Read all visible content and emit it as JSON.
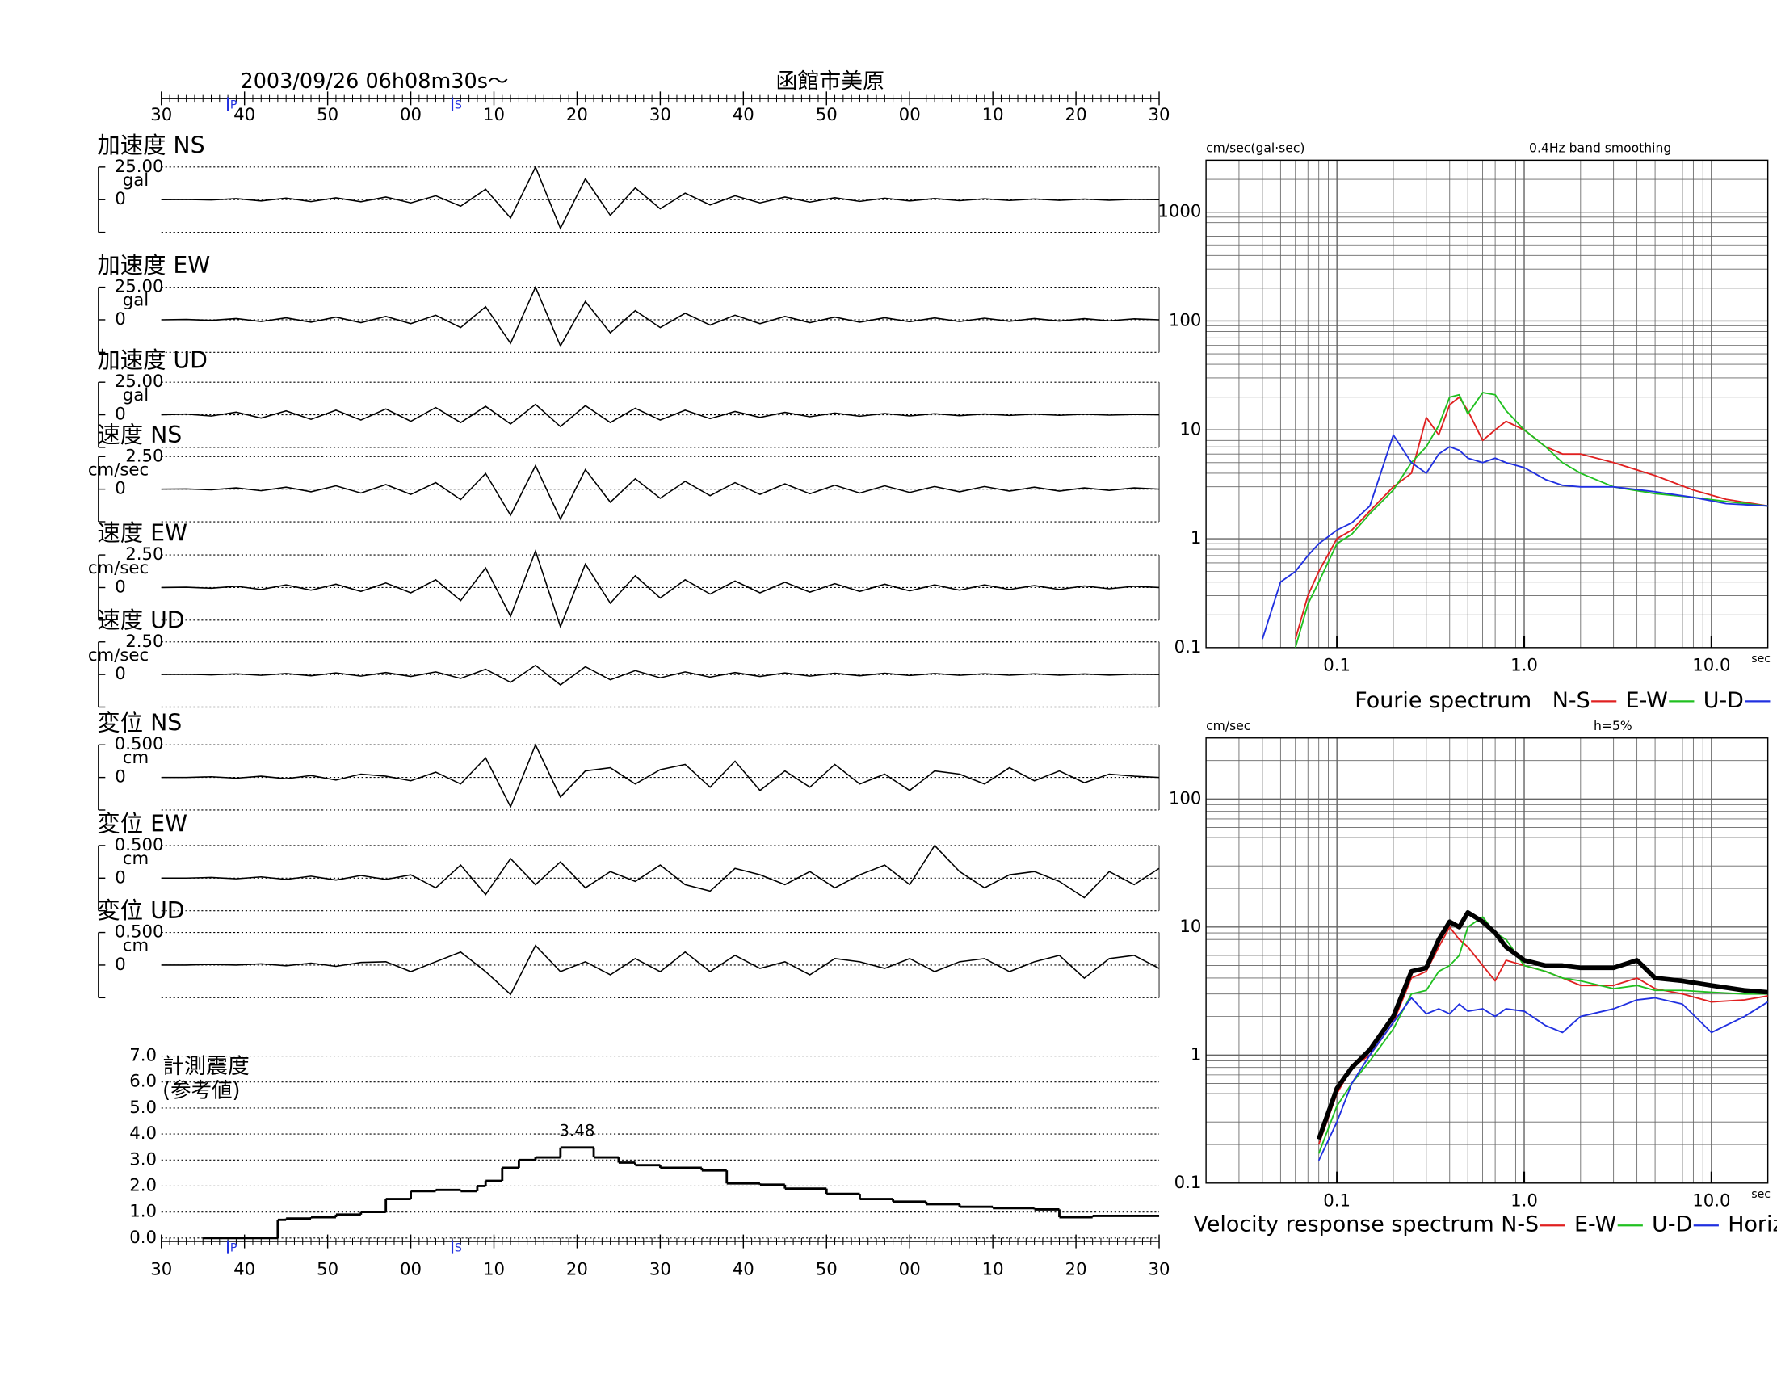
{
  "chart_data": [
    {
      "type": "waveform",
      "title": "2003/09/26  06h08m30s〜",
      "subtitle": "函館市美原",
      "xlim": [
        0,
        120
      ],
      "xticks": [
        {
          "value": 0,
          "label": "30"
        },
        {
          "value": 10,
          "label": "40"
        },
        {
          "value": 20,
          "label": "50"
        },
        {
          "value": 30,
          "label": "00"
        },
        {
          "value": 40,
          "label": "10"
        },
        {
          "value": 50,
          "label": "20"
        },
        {
          "value": 60,
          "label": "30"
        },
        {
          "value": 70,
          "label": "40"
        },
        {
          "value": 80,
          "label": "50"
        },
        {
          "value": 90,
          "label": "00"
        },
        {
          "value": 100,
          "label": "10"
        },
        {
          "value": 110,
          "label": "20"
        },
        {
          "value": 120,
          "label": "30"
        }
      ],
      "markers": [
        {
          "label": "P",
          "x": 8
        },
        {
          "label": "S",
          "x": 35
        }
      ],
      "x": [
        0,
        3,
        6,
        9,
        12,
        15,
        18,
        21,
        24,
        27,
        30,
        33,
        36,
        39,
        42,
        45,
        48,
        51,
        54,
        57,
        60,
        63,
        66,
        69,
        72,
        75,
        78,
        81,
        84,
        87,
        90,
        93,
        96,
        99,
        102,
        105,
        108,
        111,
        114,
        117,
        120
      ],
      "panels": [
        {
          "name": "加速度 NS",
          "unit": "gal",
          "ylim": [
            -25,
            25
          ],
          "yticks": [
            {
              "value": 25,
              "label": "25.00"
            },
            0
          ],
          "values": [
            0,
            0.2,
            -0.3,
            0.8,
            -1,
            1.2,
            -1.5,
            1.4,
            -1.6,
            2,
            -2.5,
            3,
            -5,
            8,
            -14,
            25,
            -22,
            16,
            -12,
            9,
            -7,
            5,
            -4,
            3,
            -2.5,
            2,
            -1.8,
            1.5,
            -1.3,
            1.1,
            -1,
            0.9,
            -0.8,
            0.7,
            -0.6,
            0.5,
            -0.5,
            0.4,
            -0.4,
            0.3,
            0
          ]
        },
        {
          "name": "加速度 EW",
          "unit": "gal",
          "ylim": [
            -25,
            25
          ],
          "yticks": [
            {
              "value": 25,
              "label": "25.00"
            },
            0
          ],
          "values": [
            0,
            0.3,
            -0.4,
            1,
            -1.3,
            1.5,
            -1.8,
            2,
            -2.2,
            2.5,
            -3,
            3.5,
            -6,
            10,
            -18,
            25,
            -20,
            14,
            -10,
            7,
            -6,
            5,
            -4,
            3.5,
            -3,
            2.5,
            -2.2,
            2,
            -1.8,
            1.6,
            -1.5,
            1.4,
            -1.3,
            1.2,
            -1.1,
            1,
            -1,
            0.9,
            -0.8,
            0.7,
            0
          ]
        },
        {
          "name": "加速度 UD",
          "unit": "gal",
          "ylim": [
            -25,
            25
          ],
          "yticks": [
            {
              "value": 25,
              "label": "25.00"
            },
            0
          ],
          "values": [
            0,
            0.5,
            -1,
            2,
            -2.5,
            3,
            -3.5,
            3.5,
            -4,
            4.5,
            -5,
            5.5,
            -6,
            6.5,
            -7,
            8,
            -9,
            7,
            -6,
            5,
            -4,
            3.5,
            -3,
            2.5,
            -2,
            1.8,
            -1.5,
            1.3,
            -1.1,
            1,
            -0.9,
            0.8,
            -0.7,
            0.6,
            -0.5,
            0.5,
            -0.4,
            0.4,
            -0.3,
            0.3,
            0
          ]
        },
        {
          "name": "速度 NS",
          "unit": "cm/sec",
          "ylim": [
            -2.5,
            2.5
          ],
          "yticks": [
            {
              "value": 2.5,
              "label": "2.50"
            },
            0
          ],
          "values": [
            0,
            0.02,
            -0.05,
            0.1,
            -0.12,
            0.15,
            -0.2,
            0.25,
            -0.3,
            0.35,
            -0.4,
            0.5,
            -0.8,
            1.2,
            -2,
            1.8,
            -2.3,
            1.5,
            -1,
            0.8,
            -0.7,
            0.6,
            -0.5,
            0.5,
            -0.4,
            0.4,
            -0.35,
            0.3,
            -0.3,
            0.25,
            -0.25,
            0.2,
            -0.2,
            0.2,
            -0.15,
            0.15,
            -0.15,
            0.1,
            -0.1,
            0.1,
            0
          ]
        },
        {
          "name": "速度 EW",
          "unit": "cm/sec",
          "ylim": [
            -2.5,
            2.5
          ],
          "yticks": [
            {
              "value": 2.5,
              "label": "2.50"
            },
            0
          ],
          "values": [
            0,
            0.03,
            -0.05,
            0.1,
            -0.15,
            0.2,
            -0.2,
            0.25,
            -0.3,
            0.35,
            -0.4,
            0.6,
            -1,
            1.5,
            -2.2,
            2.8,
            -3,
            1.8,
            -1.2,
            0.9,
            -0.8,
            0.6,
            -0.5,
            0.5,
            -0.4,
            0.4,
            -0.35,
            0.3,
            -0.3,
            0.25,
            -0.25,
            0.2,
            -0.2,
            0.2,
            -0.15,
            0.15,
            -0.15,
            0.12,
            -0.1,
            0.1,
            0
          ]
        },
        {
          "name": "速度 UD",
          "unit": "cm/sec",
          "ylim": [
            -2.5,
            2.5
          ],
          "yticks": [
            {
              "value": 2.5,
              "label": "2.50"
            },
            0
          ],
          "values": [
            0,
            0.02,
            -0.03,
            0.05,
            -0.06,
            0.08,
            -0.1,
            0.12,
            -0.12,
            0.15,
            -0.15,
            0.2,
            -0.3,
            0.4,
            -0.6,
            0.7,
            -0.8,
            0.6,
            -0.4,
            0.3,
            -0.25,
            0.2,
            -0.2,
            0.15,
            -0.15,
            0.12,
            -0.12,
            0.1,
            -0.1,
            0.1,
            -0.08,
            0.08,
            -0.06,
            0.06,
            -0.05,
            0.05,
            -0.05,
            0.04,
            -0.04,
            0.03,
            0
          ]
        },
        {
          "name": "変位 NS",
          "unit": "cm",
          "ylim": [
            -0.5,
            0.5
          ],
          "yticks": [
            {
              "value": 0.5,
              "label": "0.500"
            },
            0
          ],
          "values": [
            0,
            0,
            0.01,
            -0.01,
            0.02,
            -0.02,
            0.03,
            -0.04,
            0.05,
            0.02,
            -0.05,
            0.08,
            -0.1,
            0.3,
            -0.45,
            0.5,
            -0.3,
            0.1,
            0.15,
            -0.1,
            0.12,
            0.2,
            -0.15,
            0.25,
            -0.2,
            0.1,
            -0.15,
            0.2,
            -0.1,
            0.05,
            -0.2,
            0.1,
            0.05,
            -0.1,
            0.15,
            -0.05,
            0.1,
            -0.08,
            0.05,
            0.02,
            0
          ]
        },
        {
          "name": "変位 EW",
          "unit": "cm",
          "ylim": [
            -0.5,
            0.5
          ],
          "yticks": [
            {
              "value": 0.5,
              "label": "0.500"
            },
            0
          ],
          "values": [
            0,
            0,
            0.01,
            -0.01,
            0.02,
            -0.02,
            0.03,
            -0.03,
            0.04,
            -0.02,
            0.05,
            -0.15,
            0.2,
            -0.25,
            0.3,
            -0.1,
            0.25,
            -0.15,
            0.1,
            -0.05,
            0.2,
            -0.1,
            -0.2,
            0.15,
            0.05,
            -0.1,
            0.1,
            -0.15,
            0.05,
            0.2,
            -0.1,
            0.5,
            0.1,
            -0.15,
            0.05,
            0.1,
            -0.05,
            -0.3,
            0.1,
            -0.1,
            0.15
          ]
        },
        {
          "name": "変位 UD",
          "unit": "cm",
          "ylim": [
            -0.5,
            0.5
          ],
          "yticks": [
            {
              "value": 0.5,
              "label": "0.500"
            },
            0
          ],
          "values": [
            0,
            0,
            0.01,
            0,
            0.02,
            -0.01,
            0.03,
            -0.02,
            0.04,
            0.05,
            -0.1,
            0.05,
            0.2,
            -0.1,
            -0.45,
            0.3,
            -0.1,
            0.05,
            -0.15,
            0.1,
            -0.1,
            0.2,
            -0.1,
            0.15,
            -0.05,
            0.05,
            -0.15,
            0.1,
            0.05,
            -0.05,
            0.1,
            -0.1,
            0.05,
            0.1,
            -0.1,
            0.05,
            0.15,
            -0.2,
            0.1,
            0.15,
            -0.05
          ]
        }
      ]
    },
    {
      "type": "step",
      "title": "計測震度",
      "subtitle": "(参考値)",
      "ylim": [
        0,
        7
      ],
      "yticks": [
        {
          "value": 0,
          "label": "0.0"
        },
        {
          "value": 1,
          "label": "1.0"
        },
        {
          "value": 2,
          "label": "2.0"
        },
        {
          "value": 3,
          "label": "3.0"
        },
        {
          "value": 4,
          "label": "4.0"
        },
        {
          "value": 5,
          "label": "5.0"
        },
        {
          "value": 6,
          "label": "6.0"
        },
        {
          "value": 7,
          "label": "7.0"
        }
      ],
      "x": [
        5,
        14,
        15,
        18,
        21,
        24,
        27,
        30,
        33,
        36,
        38,
        39,
        41,
        43,
        45,
        48,
        52,
        55,
        57,
        60,
        65,
        68,
        72,
        75,
        80,
        84,
        88,
        92,
        96,
        100,
        105,
        108,
        112
      ],
      "values": [
        0,
        0.7,
        0.75,
        0.8,
        0.9,
        1.0,
        1.5,
        1.8,
        1.85,
        1.8,
        2.0,
        2.2,
        2.7,
        3.0,
        3.1,
        3.48,
        3.1,
        2.9,
        2.8,
        2.7,
        2.6,
        2.1,
        2.05,
        1.9,
        1.7,
        1.5,
        1.4,
        1.3,
        1.2,
        1.15,
        1.1,
        0.8,
        0.85
      ]
    },
    {
      "type": "line",
      "log": true,
      "title": "Fourie spectrum",
      "y_label": "cm/sec(gal·sec)",
      "annotation": "0.4Hz band smoothing",
      "x_label": "sec",
      "xlim": [
        0.02,
        20
      ],
      "ylim": [
        0.1,
        3000
      ],
      "xticks": [
        0.1,
        {
          "value": 1,
          "label": "1.0"
        },
        {
          "value": 10,
          "label": "10.0"
        }
      ],
      "yticks": [
        0.1,
        1,
        10,
        100,
        1000
      ],
      "x": [
        0.04,
        0.05,
        0.06,
        0.07,
        0.08,
        0.1,
        0.12,
        0.15,
        0.2,
        0.25,
        0.3,
        0.35,
        0.4,
        0.45,
        0.5,
        0.6,
        0.7,
        0.8,
        1.0,
        1.3,
        1.6,
        2,
        3,
        5,
        8,
        12,
        20
      ],
      "series": [
        {
          "name": "N-S",
          "color": "#e02020",
          "values": [
            null,
            null,
            0.12,
            0.3,
            0.5,
            1.0,
            1.2,
            1.8,
            3,
            4,
            13,
            9,
            17,
            20,
            15,
            8,
            10,
            12,
            10,
            7,
            6,
            6,
            5,
            3.8,
            2.8,
            2.3,
            2
          ]
        },
        {
          "name": "E-W",
          "color": "#20c020",
          "values": [
            null,
            null,
            0.1,
            0.25,
            0.4,
            0.9,
            1.1,
            1.7,
            2.8,
            5,
            7,
            11,
            20,
            21,
            14,
            22,
            21,
            15,
            10,
            7,
            5,
            4,
            3,
            2.6,
            2.4,
            2.2,
            2
          ]
        },
        {
          "name": "U-D",
          "color": "#2030e0",
          "values": [
            0.12,
            0.4,
            0.5,
            0.7,
            0.9,
            1.2,
            1.4,
            2,
            9,
            5,
            4,
            6,
            7,
            6.5,
            5.5,
            5,
            5.5,
            5,
            4.5,
            3.5,
            3.1,
            3,
            3,
            2.7,
            2.4,
            2.1,
            2
          ]
        }
      ]
    },
    {
      "type": "line",
      "log": true,
      "title": "Velocity response spectrum",
      "y_label": "cm/sec",
      "annotation": "h=5%",
      "x_label": "sec",
      "xlim": [
        0.02,
        20
      ],
      "ylim": [
        0.1,
        300
      ],
      "xticks": [
        0.1,
        {
          "value": 1,
          "label": "1.0"
        },
        {
          "value": 10,
          "label": "10.0"
        }
      ],
      "yticks": [
        0.1,
        1,
        10,
        100
      ],
      "x": [
        0.08,
        0.1,
        0.12,
        0.15,
        0.2,
        0.25,
        0.3,
        0.35,
        0.4,
        0.45,
        0.5,
        0.6,
        0.7,
        0.8,
        1.0,
        1.3,
        1.6,
        2,
        3,
        4,
        5,
        7,
        10,
        15,
        20
      ],
      "series": [
        {
          "name": "N-S",
          "color": "#e02020",
          "values": [
            0.2,
            0.5,
            0.8,
            1.0,
            1.8,
            4,
            4.5,
            7,
            10,
            8,
            7,
            5,
            3.8,
            5.5,
            5,
            4.5,
            4,
            3.5,
            3.5,
            4,
            3.3,
            3,
            2.6,
            2.7,
            2.9
          ]
        },
        {
          "name": "E-W",
          "color": "#20c020",
          "values": [
            0.17,
            0.4,
            0.6,
            0.9,
            1.6,
            3,
            3.2,
            4.5,
            5,
            6,
            10,
            12,
            9,
            8,
            5,
            4.5,
            4,
            3.8,
            3.3,
            3.5,
            3.2,
            3.2,
            3.1,
            3,
            3
          ]
        },
        {
          "name": "U-D",
          "color": "#2030e0",
          "values": [
            0.15,
            0.3,
            0.6,
            1.0,
            1.8,
            2.8,
            2.1,
            2.3,
            2.1,
            2.5,
            2.2,
            2.3,
            2.0,
            2.3,
            2.2,
            1.7,
            1.5,
            2.0,
            2.3,
            2.7,
            2.8,
            2.5,
            1.5,
            2,
            2.6
          ]
        },
        {
          "name": "Horizon",
          "color": "#000000",
          "line_width": 4,
          "values": [
            0.22,
            0.55,
            0.8,
            1.1,
            2,
            4.5,
            4.8,
            8,
            11,
            10,
            13,
            11,
            9,
            7,
            5.5,
            5,
            5,
            4.8,
            4.8,
            5.5,
            4,
            3.8,
            3.5,
            3.2,
            3.1
          ]
        }
      ]
    }
  ]
}
